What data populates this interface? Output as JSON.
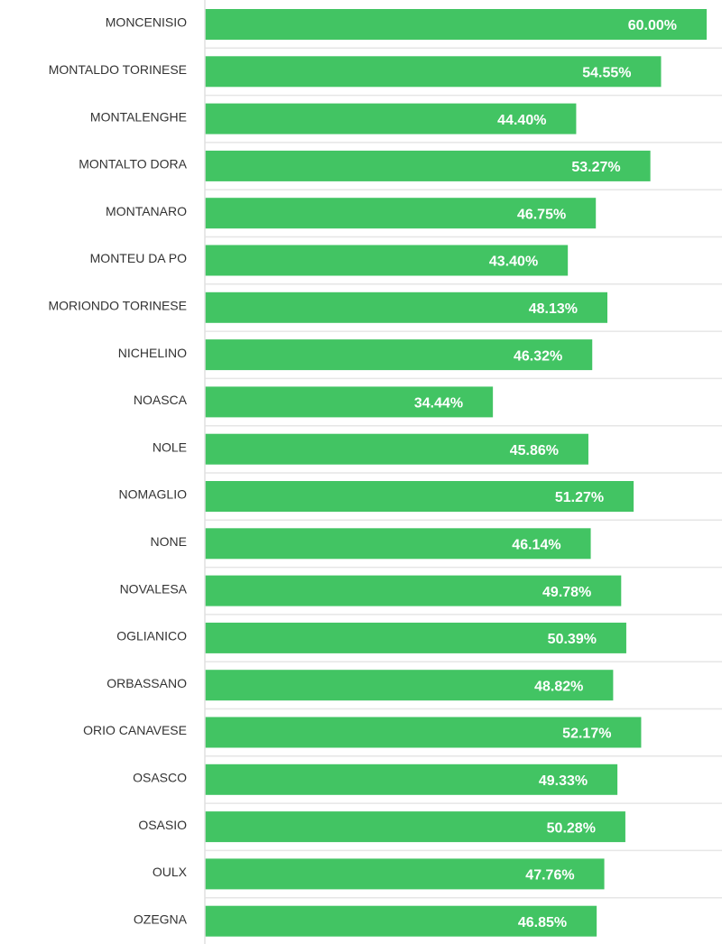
{
  "chart_data": {
    "type": "bar",
    "orientation": "horizontal",
    "categories": [
      "MONCENISIO",
      "MONTALDO TORINESE",
      "MONTALENGHE",
      "MONTALTO DORA",
      "MONTANARO",
      "MONTEU DA PO",
      "MORIONDO TORINESE",
      "NICHELINO",
      "NOASCA",
      "NOLE",
      "NOMAGLIO",
      "NONE",
      "NOVALESA",
      "OGLIANICO",
      "ORBASSANO",
      "ORIO CANAVESE",
      "OSASCO",
      "OSASIO",
      "OULX",
      "OZEGNA"
    ],
    "values": [
      60.0,
      54.55,
      44.4,
      53.27,
      46.75,
      43.4,
      48.13,
      46.32,
      34.44,
      45.86,
      51.27,
      46.14,
      49.78,
      50.39,
      48.82,
      52.17,
      49.33,
      50.28,
      47.76,
      46.85
    ],
    "value_labels": [
      "60.00%",
      "54.55%",
      "44.40%",
      "53.27%",
      "46.75%",
      "43.40%",
      "48.13%",
      "46.32%",
      "34.44%",
      "45.86%",
      "51.27%",
      "46.14%",
      "49.78%",
      "50.39%",
      "48.82%",
      "52.17%",
      "49.33%",
      "50.28%",
      "47.76%",
      "46.85%"
    ],
    "xlim": [
      0,
      60
    ],
    "grid": true,
    "bar_color": "#42c463",
    "label_color": "#ffffff"
  }
}
